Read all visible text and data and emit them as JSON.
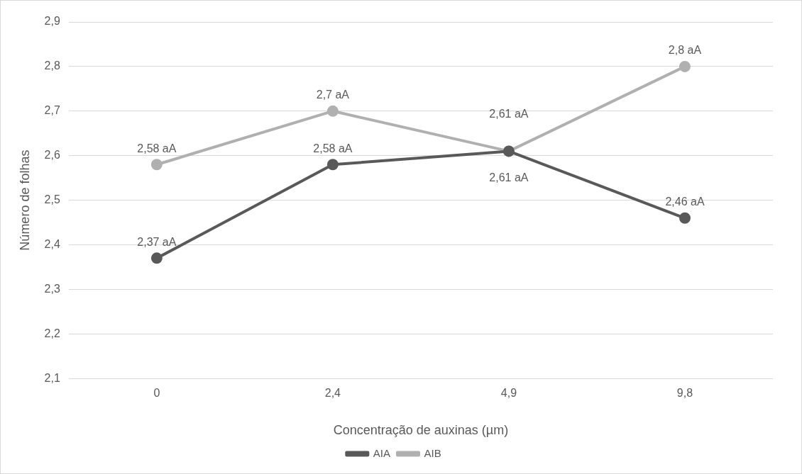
{
  "chart_data": {
    "type": "line",
    "xlabel": "Concentração de auxinas (µm)",
    "ylabel": "Número de folhas",
    "categories": [
      "0",
      "2,4",
      "4,9",
      "9,8"
    ],
    "series": [
      {
        "name": "AIA",
        "color": "#595959",
        "values": [
          2.37,
          2.58,
          2.61,
          2.46
        ],
        "value_labels": [
          "2,37 aA",
          "2,58 aA",
          "2,61 aA",
          "2,46 aA"
        ]
      },
      {
        "name": "AIB",
        "color": "#b0b0b0",
        "values": [
          2.58,
          2.7,
          2.61,
          2.8
        ],
        "value_labels": [
          "2,58 aA",
          "2,7 aA",
          "2,61 aA",
          "2,8 aA"
        ]
      }
    ],
    "ylim": [
      2.1,
      2.9
    ],
    "yticks": [
      {
        "value": 2.1,
        "label": "2,1"
      },
      {
        "value": 2.2,
        "label": "2,2"
      },
      {
        "value": 2.3,
        "label": "2,3"
      },
      {
        "value": 2.4,
        "label": "2,4"
      },
      {
        "value": 2.5,
        "label": "2,5"
      },
      {
        "value": 2.6,
        "label": "2,6"
      },
      {
        "value": 2.7,
        "label": "2,7"
      },
      {
        "value": 2.8,
        "label": "2,8"
      },
      {
        "value": 2.9,
        "label": "2,9"
      }
    ],
    "grid": "y",
    "legend": "bottom",
    "marker": "circle",
    "line_style": "solid"
  }
}
